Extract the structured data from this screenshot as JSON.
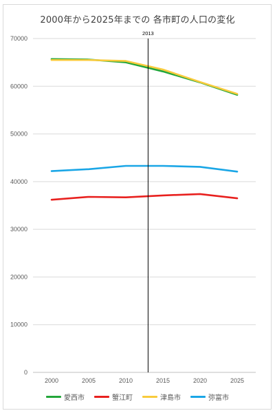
{
  "chart_data": {
    "type": "line",
    "title": "2000年から2025年までの 各市町の人口の変化",
    "xlabel": "",
    "ylabel": "",
    "x": [
      2000,
      2005,
      2010,
      2015,
      2020,
      2025
    ],
    "ylim": [
      0,
      70000
    ],
    "yticks": [
      0,
      10000,
      20000,
      30000,
      40000,
      50000,
      60000,
      70000
    ],
    "grid": true,
    "legend_position": "bottom",
    "series": [
      {
        "name": "愛西市",
        "color": "#22a63a",
        "values": [
          65700,
          65600,
          65000,
          63100,
          60800,
          58200
        ]
      },
      {
        "name": "蟹江町",
        "color": "#e8201e",
        "values": [
          36200,
          36800,
          36700,
          37100,
          37400,
          36500
        ]
      },
      {
        "name": "津島市",
        "color": "#f8cb3c",
        "values": [
          65500,
          65500,
          65300,
          63500,
          60900,
          58400
        ]
      },
      {
        "name": "弥富市",
        "color": "#1aa6e6",
        "values": [
          42200,
          42600,
          43300,
          43300,
          43100,
          42100
        ]
      }
    ],
    "annotations": [
      {
        "type": "vline",
        "x": 2013,
        "label": "2013"
      }
    ]
  }
}
